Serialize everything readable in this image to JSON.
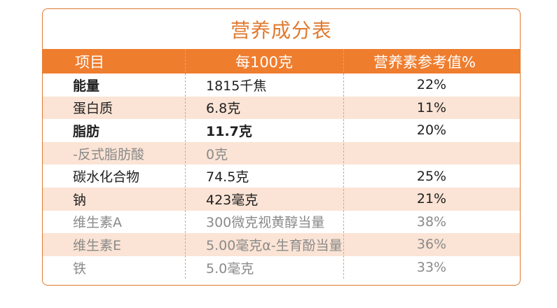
{
  "title": "营养成分表",
  "headers": {
    "item": "项目",
    "per100": "每100克",
    "nrv": "营养素参考值%"
  },
  "rows": [
    {
      "item": "能量",
      "per100": "1815千焦",
      "nrv": "22%"
    },
    {
      "item": "蛋白质",
      "per100": "6.8克",
      "nrv": "11%"
    },
    {
      "item": "脂肪",
      "per100": "11.7克",
      "nrv": "20%"
    },
    {
      "item": "-反式脂肪酸",
      "per100": "0克",
      "nrv": ""
    },
    {
      "item": "碳水化合物",
      "per100": "74.5克",
      "nrv": "25%"
    },
    {
      "item": "钠",
      "per100": "423毫克",
      "nrv": "21%"
    },
    {
      "item": "维生素A",
      "per100": "300微克视黄醇当量",
      "nrv": "38%"
    },
    {
      "item": "维生素E",
      "per100": "5.00毫克α-生育酚当量",
      "nrv": "36%"
    },
    {
      "item": "铁",
      "per100": "5.0毫克",
      "nrv": "33%"
    }
  ],
  "colors": {
    "accent": "#ef7d2e",
    "row_shade": "#fbe4d5",
    "border": "#e07a2f"
  }
}
